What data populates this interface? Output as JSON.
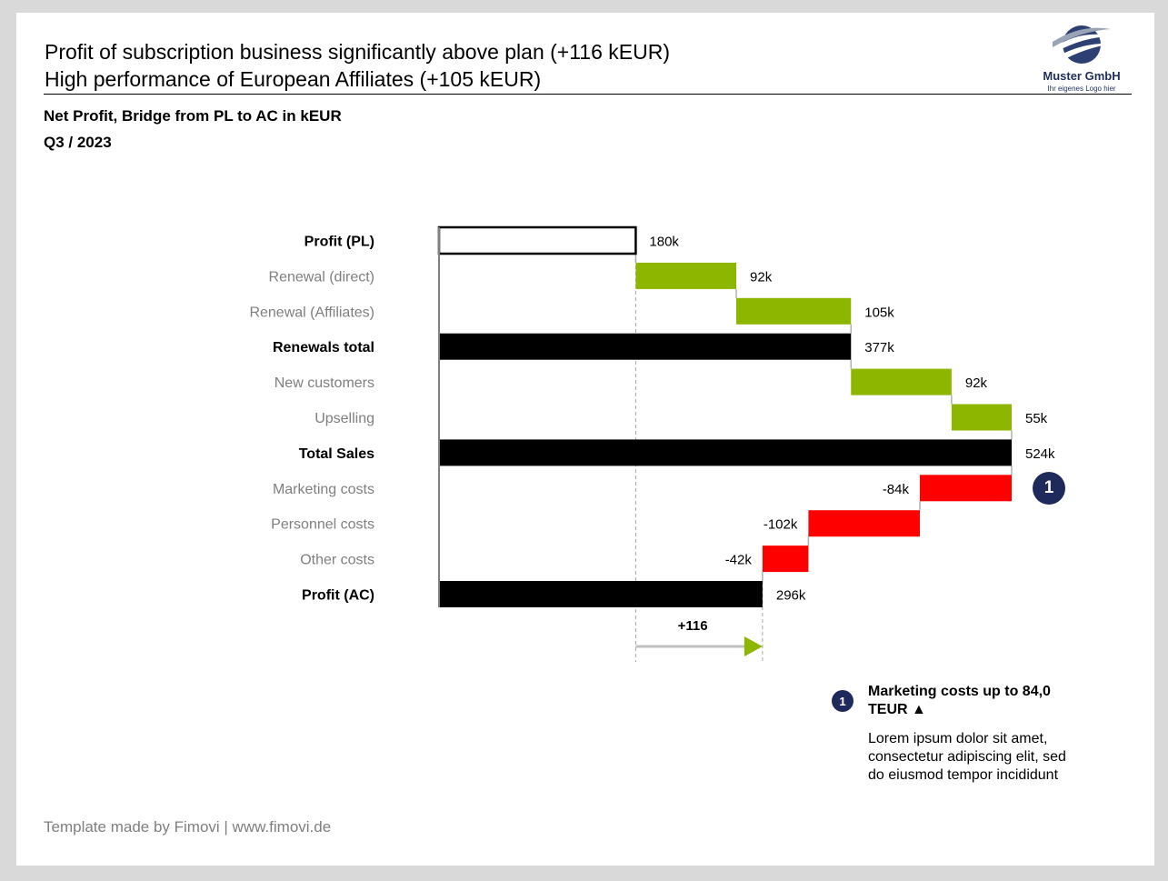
{
  "header": {
    "headline_line1": "Profit of subscription business significantly above plan (+116 kEUR)",
    "headline_line2": "High performance of European Affiliates (+105 kEUR)",
    "subtitle_line1": "Net Profit, Bridge from PL to AC in kEUR",
    "subtitle_line2": "Q3 / 2023"
  },
  "logo": {
    "name": "Muster GmbH",
    "tagline": "Ihr eigenes Logo hier",
    "icon": "globe-swoosh-icon"
  },
  "colors": {
    "increase": "#8db600",
    "decrease": "#ff0000",
    "total": "#000000",
    "plan": "#ffffff",
    "badge": "#1f2a5c",
    "connector": "#b0b0b0"
  },
  "chart_data": {
    "type": "bar",
    "subtype": "waterfall",
    "orientation": "horizontal",
    "unit": "kEUR",
    "categories": [
      "Profit (PL)",
      "Renewal (direct)",
      "Renewal (Affiliates)",
      "Renewals total",
      "New customers",
      "Upselling",
      "Total Sales",
      "Marketing costs",
      "Personnel costs",
      "Other costs",
      "Profit (AC)"
    ],
    "values": [
      180,
      92,
      105,
      377,
      92,
      55,
      524,
      -84,
      -102,
      -42,
      296
    ],
    "value_labels": [
      "180k",
      "92k",
      "105k",
      "377k",
      "92k",
      "55k",
      "524k",
      "-84k",
      "-102k",
      "-42k",
      "296k"
    ],
    "kinds": [
      "plan",
      "delta",
      "delta",
      "total",
      "delta",
      "delta",
      "total",
      "delta",
      "delta",
      "delta",
      "total"
    ],
    "bold_categories": [
      "Profit (PL)",
      "Renewals total",
      "Total Sales",
      "Profit (AC)"
    ],
    "xlim": [
      0,
      524
    ],
    "variance_label": "+116",
    "variance_value": 116,
    "variance_from": 180,
    "variance_to": 296,
    "callout_category": "Marketing costs",
    "callout_number": "1"
  },
  "note": {
    "number": "1",
    "title": "Marketing costs up to 84,0 TEUR ▲",
    "body": "Lorem ipsum dolor sit amet, consectetur adipiscing elit, sed do eiusmod tempor incididunt"
  },
  "footer": {
    "text": "Template made by Fimovi  |  www.fimovi.de"
  }
}
